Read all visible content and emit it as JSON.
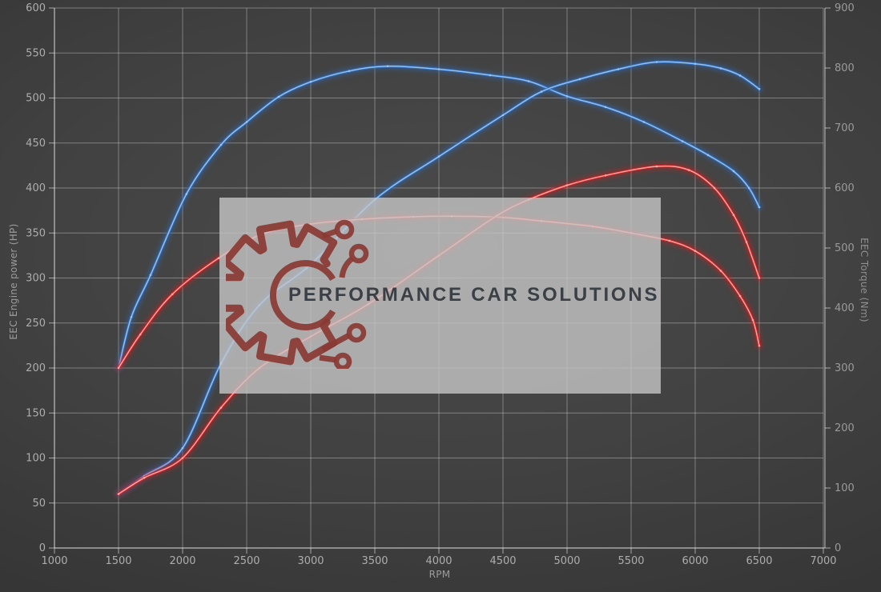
{
  "watermark": {
    "brand": "PERFORMANCE CAR SOLUTIONS",
    "logo": "gear-circuit-logo",
    "logo_color": "#8a3a33",
    "panel_color": "rgba(197,197,197,0.8)",
    "text_color": "#3a4045"
  },
  "chart_data": {
    "type": "line",
    "title": "",
    "x": {
      "label": "RPM",
      "min": 1000,
      "max": 7000,
      "tick_step": 500,
      "ticks": [
        1000,
        1500,
        2000,
        2500,
        3000,
        3500,
        4000,
        4500,
        5000,
        5500,
        6000,
        6500,
        7000
      ]
    },
    "y_left": {
      "label": "EEC Engine power (HP)",
      "min": 0,
      "max": 600,
      "tick_step": 50,
      "ticks": [
        0,
        50,
        100,
        150,
        200,
        250,
        300,
        350,
        400,
        450,
        500,
        550,
        600
      ]
    },
    "y_right": {
      "label": "EEC Torque (Nm)",
      "min": 0,
      "max": 900,
      "tick_step": 100,
      "ticks": [
        0,
        100,
        200,
        300,
        400,
        500,
        600,
        700,
        800,
        900
      ]
    },
    "grid": true,
    "legend": "none",
    "style": {
      "grid_color": "rgba(255,255,255,0.33)",
      "axis_color": "rgba(255,255,255,0.55)",
      "tick_color": "#adadad"
    },
    "series": [
      {
        "name": "blue-torque",
        "axis": "right",
        "glow": "#2f6fc2",
        "core": "#9cc4ee",
        "points": [
          [
            1500,
            300
          ],
          [
            1600,
            385
          ],
          [
            1750,
            455
          ],
          [
            2030,
            590
          ],
          [
            2300,
            672
          ],
          [
            2500,
            710
          ],
          [
            2750,
            752
          ],
          [
            3000,
            777
          ],
          [
            3300,
            795
          ],
          [
            3600,
            803
          ],
          [
            4000,
            798
          ],
          [
            4400,
            788
          ],
          [
            4700,
            778
          ],
          [
            5000,
            753
          ],
          [
            5300,
            735
          ],
          [
            5600,
            710
          ],
          [
            5900,
            678
          ],
          [
            6100,
            655
          ],
          [
            6300,
            628
          ],
          [
            6420,
            600
          ],
          [
            6500,
            568
          ]
        ]
      },
      {
        "name": "blue-power",
        "axis": "left",
        "glow": "#2f6fc2",
        "core": "#9cc4ee",
        "points": [
          [
            1500,
            60
          ],
          [
            1700,
            80
          ],
          [
            2000,
            111
          ],
          [
            2300,
            205
          ],
          [
            2600,
            270
          ],
          [
            3000,
            315
          ],
          [
            3500,
            387
          ],
          [
            4000,
            435
          ],
          [
            4500,
            481
          ],
          [
            4800,
            507
          ],
          [
            5100,
            521
          ],
          [
            5400,
            532
          ],
          [
            5700,
            540
          ],
          [
            6000,
            538
          ],
          [
            6200,
            533
          ],
          [
            6350,
            525
          ],
          [
            6500,
            510
          ]
        ]
      },
      {
        "name": "red-torque",
        "axis": "right",
        "glow": "#d81f1f",
        "core": "#ffabab",
        "points": [
          [
            1500,
            300
          ],
          [
            1670,
            356
          ],
          [
            1920,
            423
          ],
          [
            2280,
            483
          ],
          [
            2620,
            523
          ],
          [
            3000,
            540
          ],
          [
            3400,
            548
          ],
          [
            3800,
            552
          ],
          [
            4100,
            553
          ],
          [
            4500,
            551
          ],
          [
            4800,
            545
          ],
          [
            5200,
            536
          ],
          [
            5500,
            525
          ],
          [
            5800,
            512
          ],
          [
            6000,
            495
          ],
          [
            6200,
            462
          ],
          [
            6350,
            420
          ],
          [
            6450,
            380
          ],
          [
            6500,
            337
          ]
        ]
      },
      {
        "name": "red-power",
        "axis": "left",
        "glow": "#d81f1f",
        "core": "#ffabab",
        "points": [
          [
            1500,
            60
          ],
          [
            1700,
            78
          ],
          [
            2000,
            100
          ],
          [
            2300,
            156
          ],
          [
            2600,
            200
          ],
          [
            3000,
            235
          ],
          [
            3450,
            271
          ],
          [
            4000,
            325
          ],
          [
            4450,
            369
          ],
          [
            4700,
            387
          ],
          [
            5000,
            403
          ],
          [
            5300,
            414
          ],
          [
            5700,
            424
          ],
          [
            5950,
            420
          ],
          [
            6150,
            400
          ],
          [
            6300,
            370
          ],
          [
            6400,
            340
          ],
          [
            6500,
            300
          ]
        ]
      }
    ]
  }
}
